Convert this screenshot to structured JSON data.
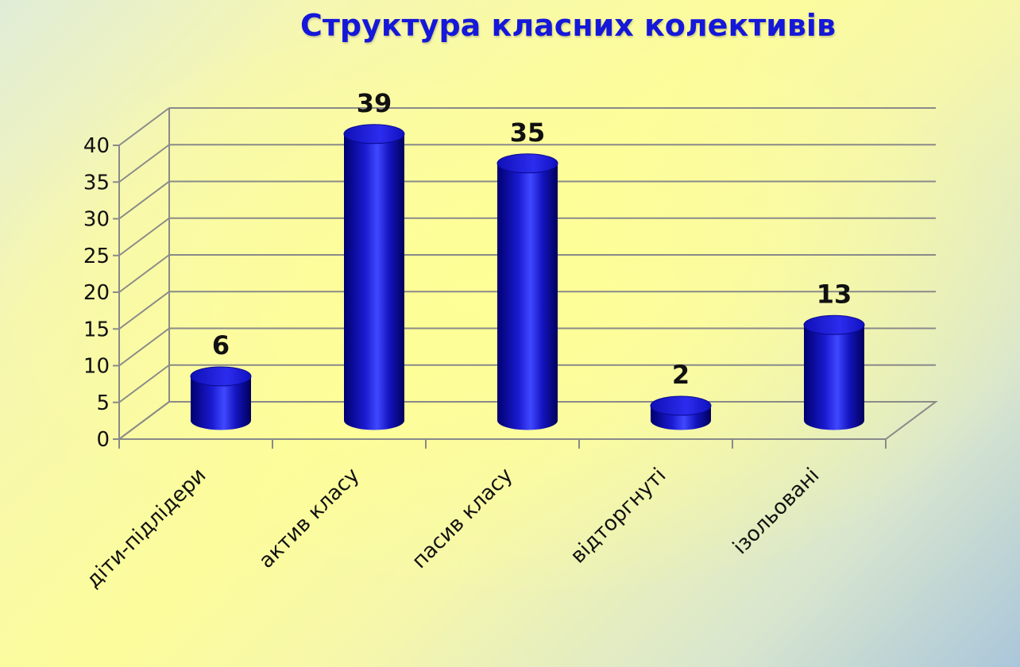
{
  "chart_data": {
    "type": "bar",
    "title": "Структура класних колективів",
    "categories": [
      "діти-підлідери",
      "актив класу",
      "пасив класу",
      "відторгнуті",
      "ізольовані"
    ],
    "values": [
      6,
      39,
      35,
      2,
      13
    ],
    "data_labels": [
      "6",
      "39",
      "35",
      "2",
      "13"
    ],
    "ylim": [
      0,
      40
    ],
    "yticks": [
      "0",
      "5",
      "10",
      "15",
      "20",
      "25",
      "30",
      "35",
      "40"
    ],
    "grid": true,
    "legend": "none",
    "style": "3d-cylinder",
    "colors": {
      "bar": "#1010b0",
      "bar_highlight": "#5a60ff",
      "bar_shadow": "#00005a",
      "top": "#2a2ae0",
      "title": "#1518d8",
      "grid": "#8a8a8a",
      "text": "#111111"
    }
  }
}
